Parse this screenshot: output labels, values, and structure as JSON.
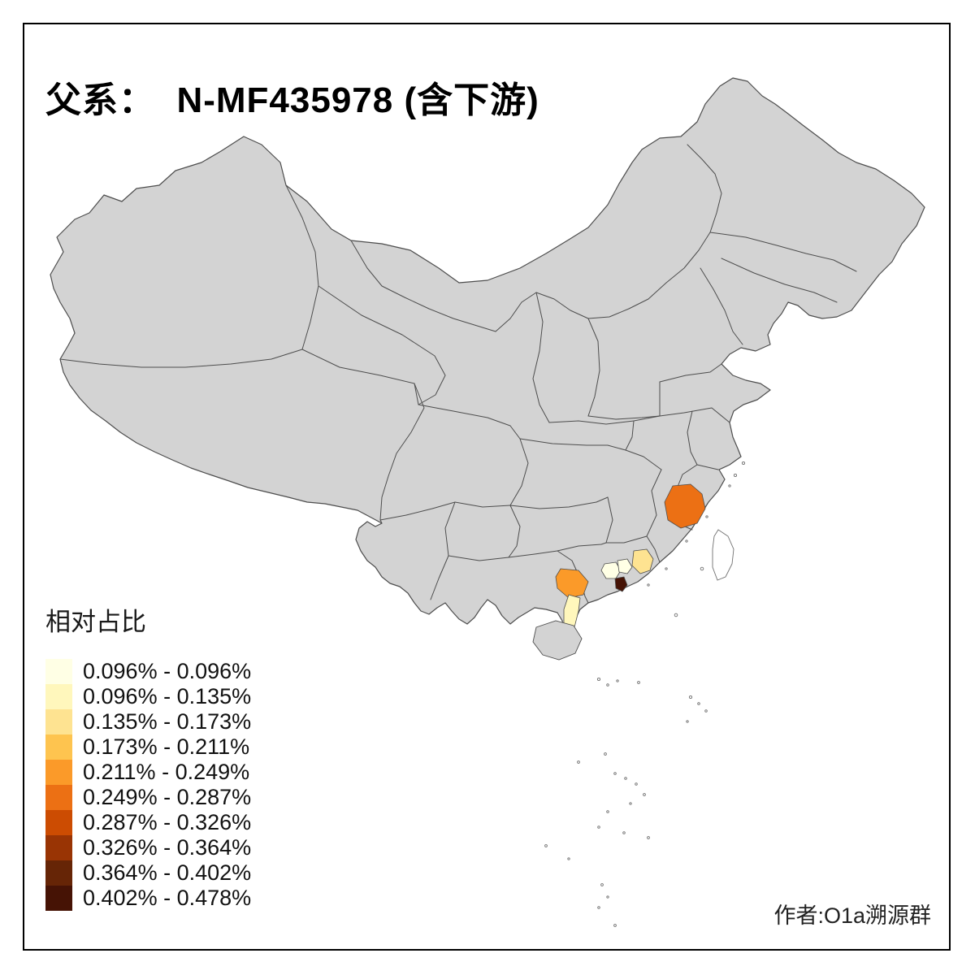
{
  "title": "父系：  N-MF435978 (含下游)",
  "legend": {
    "title": "相对占比",
    "items": [
      {
        "label": "0.096% - 0.096%",
        "color": "#FFFFE5"
      },
      {
        "label": "0.096% - 0.135%",
        "color": "#FFF7BC"
      },
      {
        "label": "0.135% - 0.173%",
        "color": "#FEE391"
      },
      {
        "label": "0.173% - 0.211%",
        "color": "#FEC44F"
      },
      {
        "label": "0.211% - 0.249%",
        "color": "#FB9A29"
      },
      {
        "label": "0.249% - 0.287%",
        "color": "#EC7014"
      },
      {
        "label": "0.287% - 0.326%",
        "color": "#CC4C02"
      },
      {
        "label": "0.326% - 0.364%",
        "color": "#993404"
      },
      {
        "label": "0.364% - 0.402%",
        "color": "#662506"
      },
      {
        "label": "0.402% - 0.478%",
        "color": "#461305"
      }
    ]
  },
  "author": "作者:O1a溯源群",
  "map": {
    "base_fill": "#D3D3D3",
    "border_color": "#4D4D4D",
    "highlighted_regions": [
      {
        "name": "fujian-central",
        "range": "0.249% - 0.287%",
        "color": "#EC7014"
      },
      {
        "name": "guangxi-southeast",
        "range": "0.211% - 0.249%",
        "color": "#FB9A29"
      },
      {
        "name": "leizhou-peninsula",
        "range": "0.096% - 0.135%",
        "color": "#FFF7BC"
      },
      {
        "name": "pearl-delta-west",
        "range": "0.096% - 0.096%",
        "color": "#FFFFE5"
      },
      {
        "name": "pearl-delta-north",
        "range": "0.096% - 0.096%",
        "color": "#FFFFE5"
      },
      {
        "name": "guangdong-east",
        "range": "0.135% - 0.173%",
        "color": "#FEE391"
      },
      {
        "name": "pearl-delta-south",
        "range": "0.402% - 0.478%",
        "color": "#461305"
      }
    ]
  }
}
